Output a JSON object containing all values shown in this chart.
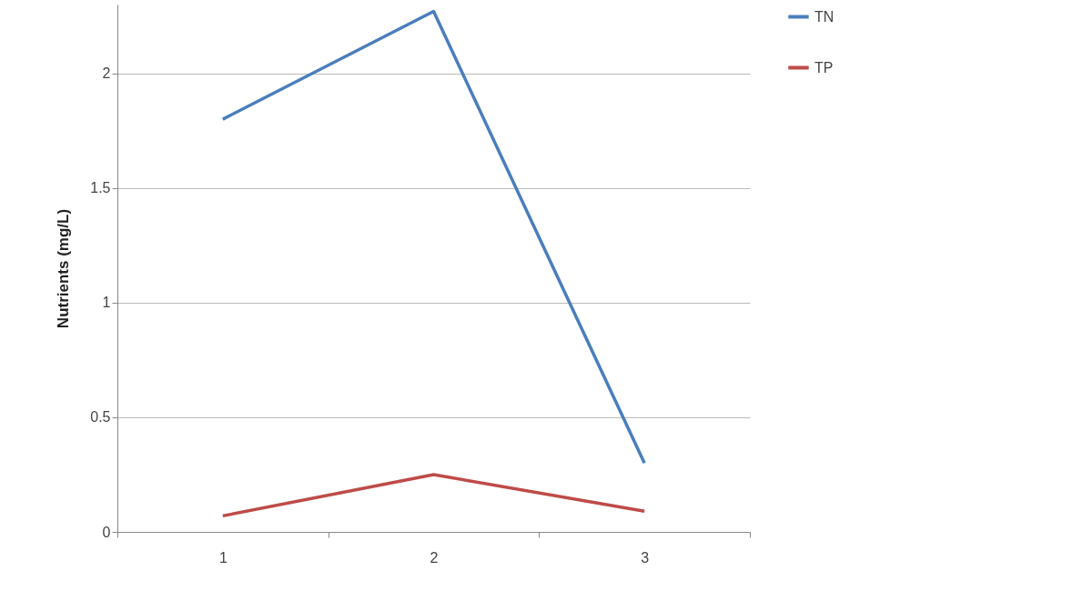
{
  "chart_data": {
    "type": "line",
    "ylabel": "Nutrients (mg/L)",
    "categories": [
      "1",
      "2",
      "3"
    ],
    "series": [
      {
        "name": "TN",
        "color": "#4a7ebb",
        "values": [
          1.8,
          2.27,
          0.3
        ]
      },
      {
        "name": "TP",
        "color": "#be4b48",
        "values": [
          0.07,
          0.25,
          0.09
        ]
      }
    ],
    "ylim": [
      0,
      2.3
    ],
    "yticks": [
      0,
      0.5,
      1,
      1.5,
      2
    ],
    "grid": "y",
    "legend": "right",
    "marker": "none",
    "line_style": "solid"
  }
}
